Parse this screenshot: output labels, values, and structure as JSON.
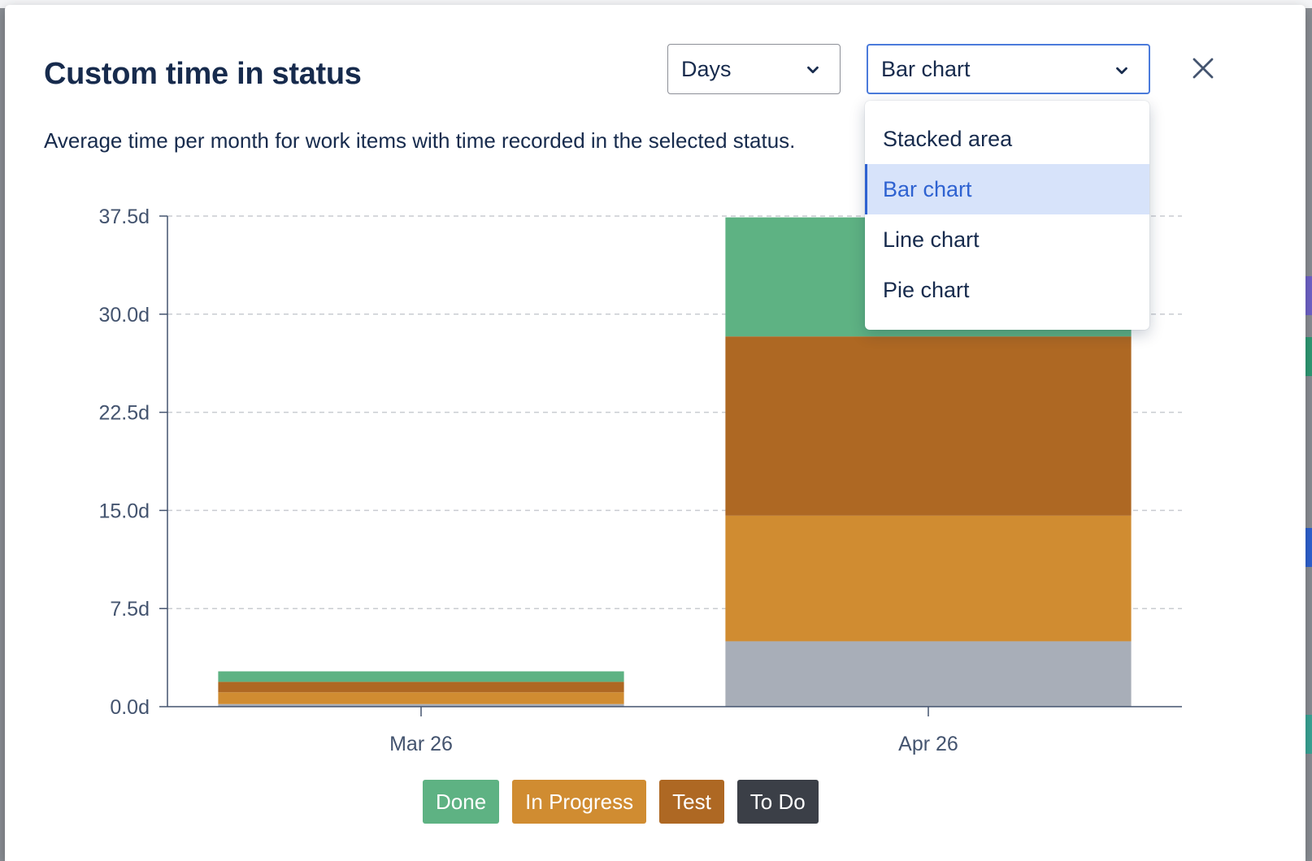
{
  "modal": {
    "title": "Custom time in status",
    "description": "Average time per month for work items with time recorded in the selected status.",
    "close_icon": "close-icon"
  },
  "controls": {
    "units": {
      "value": "Days",
      "icon": "chevron-down-icon"
    },
    "chart_type": {
      "value": "Bar chart",
      "icon": "chevron-down-icon",
      "options": [
        "Stacked area",
        "Bar chart",
        "Line chart",
        "Pie chart"
      ],
      "selected_index": 1
    }
  },
  "colors": {
    "done": "#5eb283",
    "in_progress": "#d08c31",
    "test": "#ae6823",
    "to_do": "#a8aeb8",
    "to_do_chip": "#3b3f47",
    "accent": "#2e62d1"
  },
  "chart_data": {
    "type": "bar",
    "stacked": true,
    "categories": [
      "Mar 26",
      "Apr 26"
    ],
    "series": [
      {
        "name": "To Do",
        "key": "to_do",
        "values": [
          0.2,
          5.0
        ]
      },
      {
        "name": "In Progress",
        "key": "in_progress",
        "values": [
          0.9,
          9.6
        ]
      },
      {
        "name": "Test",
        "key": "test",
        "values": [
          0.8,
          13.7
        ]
      },
      {
        "name": "Done",
        "key": "done",
        "values": [
          0.8,
          9.1
        ]
      }
    ],
    "ylim": [
      0,
      37.5
    ],
    "yticks": [
      "0.0d",
      "7.5d",
      "15.0d",
      "22.5d",
      "30.0d",
      "37.5d"
    ],
    "grid": true,
    "legend_position": "bottom-center"
  },
  "legend": [
    {
      "label": "Done",
      "key": "done"
    },
    {
      "label": "In Progress",
      "key": "in_progress"
    },
    {
      "label": "Test",
      "key": "test"
    },
    {
      "label": "To Do",
      "key": "to_do_chip"
    }
  ]
}
